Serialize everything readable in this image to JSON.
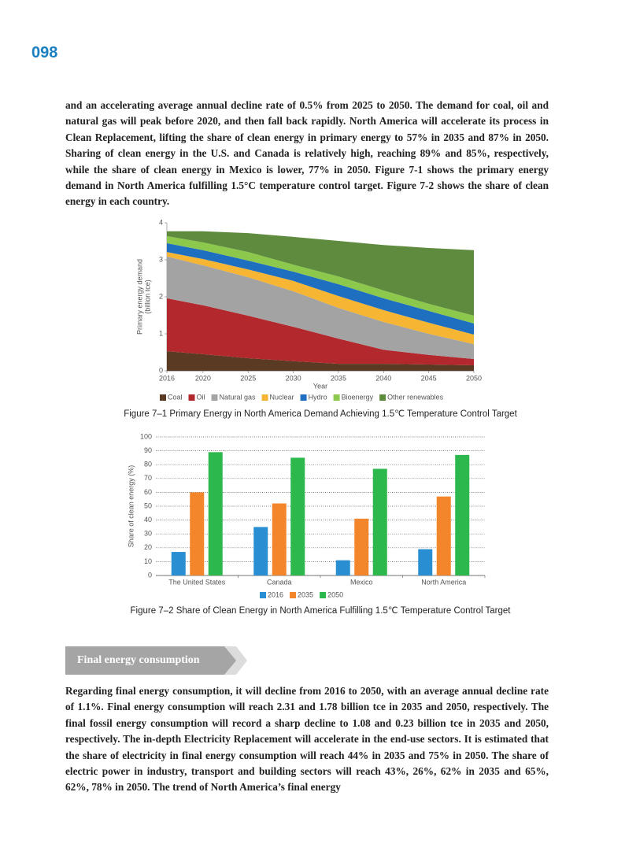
{
  "page_number": "098",
  "paragraphs": [
    "and an accelerating average annual decline rate of 0.5% from 2025 to 2050. The demand for coal, oil and natural gas will peak before 2020, and then fall back rapidly. North America will accelerate its process in Clean Replacement, lifting the share of clean energy in primary energy to 57% in 2035 and 87% in 2050. Sharing of clean energy in the U.S. and Canada is relatively high, reaching 89% and 85%, respectively, while the share of clean energy in Mexico is lower, 77% in 2050. Figure 7-1 shows the primary energy demand in North America fulfilling 1.5°C temperature control target. Figure 7-2 shows the share of clean energy in each country.",
    "Regarding final energy consumption, it will decline from 2016 to 2050, with an average annual decline rate of 1.1%. Final energy consumption will reach 2.31 and 1.78 billion tce in 2035 and 2050, respectively. The final fossil energy consumption will record a sharp decline to 1.08 and 0.23 billion tce in 2035 and 2050, respectively. The in-depth Electricity Replacement will accelerate in the end-use sectors. It is estimated that the share of electricity in final energy consumption will reach 44% in 2035 and 75% in 2050. The share of electric power in industry, transport and building sectors will reach 43%, 26%, 62% in 2035 and 65%, 62%, 78% in 2050. The trend of North America’s final energy"
  ],
  "section_heading": "Final energy consumption",
  "chart_data": [
    {
      "type": "area",
      "stacked": true,
      "title": "Figure 7–1   Primary Energy in North America Demand Achieving 1.5℃ Temperature Control Target",
      "ylabel": "Primary energy demand",
      "ylabel_unit": "(billion tce)",
      "xlabel": "Year",
      "x": [
        2016,
        2020,
        2025,
        2030,
        2035,
        2040,
        2045,
        2050
      ],
      "xlim": [
        2016,
        2050
      ],
      "xticks": [
        2016,
        2020,
        2025,
        2030,
        2035,
        2040,
        2045,
        2050
      ],
      "ylim": [
        0,
        4
      ],
      "yticks": [
        0,
        1,
        2,
        3,
        4
      ],
      "grid": false,
      "legend": "bottom",
      "series": [
        {
          "name": "Coal",
          "color": "#5a3a22",
          "values": [
            0.53,
            0.45,
            0.34,
            0.26,
            0.19,
            0.19,
            0.17,
            0.15
          ]
        },
        {
          "name": "Oil",
          "color": "#b3282d",
          "values": [
            1.43,
            1.32,
            1.15,
            0.93,
            0.68,
            0.38,
            0.26,
            0.17
          ]
        },
        {
          "name": "Natural gas",
          "color": "#a3a3a3",
          "values": [
            1.13,
            1.08,
            1.04,
            0.96,
            0.83,
            0.75,
            0.57,
            0.4
          ]
        },
        {
          "name": "Nuclear",
          "color": "#f6b532",
          "values": [
            0.12,
            0.17,
            0.21,
            0.28,
            0.32,
            0.32,
            0.3,
            0.26
          ]
        },
        {
          "name": "Hydro",
          "color": "#1f6fc0",
          "values": [
            0.24,
            0.24,
            0.24,
            0.25,
            0.32,
            0.32,
            0.32,
            0.3
          ]
        },
        {
          "name": "Bioenergy",
          "color": "#8cc84b",
          "values": [
            0.19,
            0.21,
            0.23,
            0.19,
            0.21,
            0.21,
            0.19,
            0.21
          ]
        },
        {
          "name": "Other renewables",
          "color": "#5e8b3e",
          "values": [
            0.13,
            0.3,
            0.51,
            0.75,
            0.96,
            1.23,
            1.51,
            1.77
          ]
        }
      ]
    },
    {
      "type": "bar",
      "title": "Figure 7–2   Share of Clean Energy in North America Fulfilling 1.5℃ Temperature Control Target",
      "ylabel": "Share of clean energy (%)",
      "categories": [
        "The United States",
        "Canada",
        "Mexico",
        "North America"
      ],
      "ylim": [
        0,
        100
      ],
      "yticks": [
        0,
        10,
        20,
        30,
        40,
        50,
        60,
        70,
        80,
        90,
        100
      ],
      "grid": true,
      "legend": "bottom",
      "series": [
        {
          "name": "2016",
          "color": "#2a8fd2",
          "values": [
            17,
            35,
            11,
            19
          ]
        },
        {
          "name": "2035",
          "color": "#f3862b",
          "values": [
            60,
            52,
            41,
            57
          ]
        },
        {
          "name": "2050",
          "color": "#2db84d",
          "values": [
            89,
            85,
            77,
            87
          ]
        }
      ]
    }
  ]
}
